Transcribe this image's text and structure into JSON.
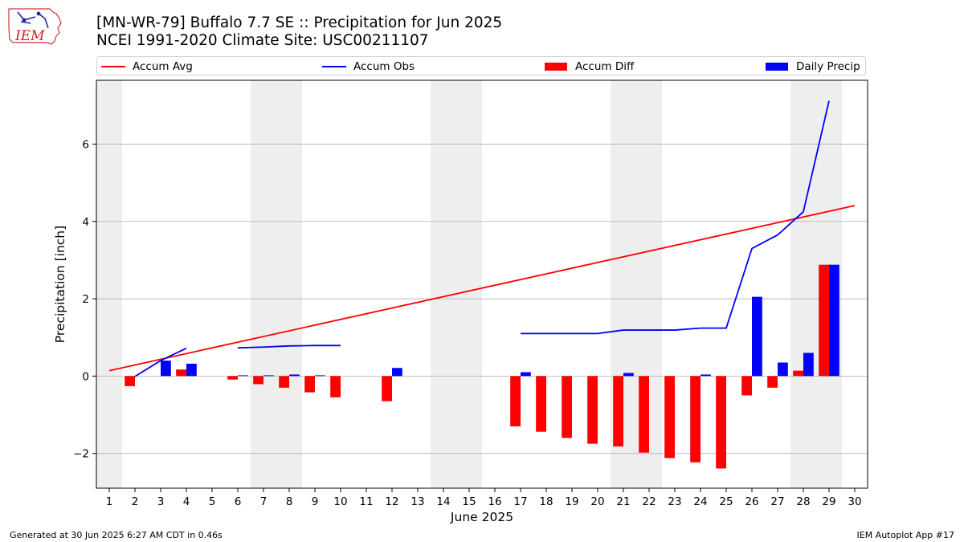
{
  "header": {
    "logo_text": "IEM",
    "title_line1": "[MN-WR-79] Buffalo 7.7 SE :: Precipitation for Jun 2025",
    "title_line2": "NCEI 1991-2020 Climate Site: USC00211107"
  },
  "footer": {
    "generated": "Generated at 30 Jun 2025 6:27 AM CDT in 0.46s",
    "app": "IEM Autoplot App #17"
  },
  "colors": {
    "accum_avg": "#ff0000",
    "accum_obs": "#0000ff",
    "accum_diff": "#ff0000",
    "daily_precip": "#0000ff",
    "weekend_shade": "#eeeeee",
    "grid": "#b0b0b0"
  },
  "chart_data": {
    "type": "bar",
    "xlabel": "June 2025",
    "ylabel": "Precipitation [inch]",
    "xlim": [
      0.5,
      30.5
    ],
    "ylim": [
      -2.9,
      7.65
    ],
    "x_ticks": [
      1,
      2,
      3,
      4,
      5,
      6,
      7,
      8,
      9,
      10,
      11,
      12,
      13,
      14,
      15,
      16,
      17,
      18,
      19,
      20,
      21,
      22,
      23,
      24,
      25,
      26,
      27,
      28,
      29,
      30
    ],
    "y_ticks": [
      -2,
      0,
      2,
      4,
      6
    ],
    "grid": "horizontal",
    "legend_position": "top",
    "legend": [
      "Accum Avg",
      "Accum Obs",
      "Accum Diff",
      "Daily Precip"
    ],
    "weekend_days": [
      1,
      7,
      8,
      14,
      15,
      21,
      22,
      28,
      29
    ],
    "accum_avg": {
      "x": [
        1,
        30
      ],
      "y": [
        0.14,
        4.41
      ]
    },
    "accum_obs": [
      {
        "x": [
          2,
          3,
          4
        ],
        "y": [
          -0.01,
          0.4,
          0.72
        ]
      },
      {
        "x": [
          6,
          7,
          8,
          9,
          10
        ],
        "y": [
          0.73,
          0.75,
          0.78,
          0.79,
          0.79
        ]
      },
      {
        "x": [
          17,
          18,
          19,
          20,
          21,
          22,
          23,
          24,
          25,
          26,
          27,
          28,
          29
        ],
        "y": [
          1.1,
          1.1,
          1.1,
          1.1,
          1.19,
          1.19,
          1.19,
          1.24,
          1.24,
          3.3,
          3.65,
          4.25,
          7.12
        ]
      }
    ],
    "accum_diff": [
      {
        "day": 2,
        "value": -0.26
      },
      {
        "day": 4,
        "value": 0.17
      },
      {
        "day": 6,
        "value": -0.09
      },
      {
        "day": 7,
        "value": -0.21
      },
      {
        "day": 8,
        "value": -0.3
      },
      {
        "day": 9,
        "value": -0.42
      },
      {
        "day": 10,
        "value": -0.55
      },
      {
        "day": 12,
        "value": -0.65
      },
      {
        "day": 17,
        "value": -1.3
      },
      {
        "day": 18,
        "value": -1.44
      },
      {
        "day": 19,
        "value": -1.6
      },
      {
        "day": 20,
        "value": -1.75
      },
      {
        "day": 21,
        "value": -1.82
      },
      {
        "day": 22,
        "value": -1.98
      },
      {
        "day": 23,
        "value": -2.12
      },
      {
        "day": 24,
        "value": -2.23
      },
      {
        "day": 25,
        "value": -2.39
      },
      {
        "day": 26,
        "value": -0.5
      },
      {
        "day": 27,
        "value": -0.3
      },
      {
        "day": 28,
        "value": 0.14
      },
      {
        "day": 29,
        "value": 2.88
      }
    ],
    "daily_precip": [
      {
        "day": 3,
        "value": 0.4
      },
      {
        "day": 4,
        "value": 0.32
      },
      {
        "day": 6,
        "value": 0.02
      },
      {
        "day": 7,
        "value": 0.02
      },
      {
        "day": 8,
        "value": 0.04
      },
      {
        "day": 9,
        "value": 0.02
      },
      {
        "day": 12,
        "value": 0.21
      },
      {
        "day": 17,
        "value": 0.1
      },
      {
        "day": 21,
        "value": 0.08
      },
      {
        "day": 24,
        "value": 0.04
      },
      {
        "day": 26,
        "value": 2.05
      },
      {
        "day": 27,
        "value": 0.35
      },
      {
        "day": 28,
        "value": 0.6
      },
      {
        "day": 29,
        "value": 2.88
      }
    ]
  }
}
